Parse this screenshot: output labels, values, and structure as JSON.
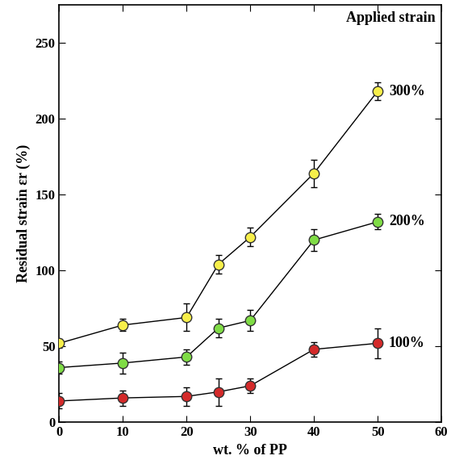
{
  "chart_data": {
    "type": "line",
    "xlabel": "wt. % of PP",
    "ylabel": "Residual strain εr (%)",
    "annotations": [
      "Applied strain"
    ],
    "x": [
      0,
      10,
      20,
      25,
      30,
      40,
      50
    ],
    "xlim": [
      0,
      60
    ],
    "xticks": [
      0,
      10,
      20,
      30,
      40,
      50,
      60
    ],
    "ylim": [
      0,
      275
    ],
    "yticks": [
      0,
      50,
      100,
      150,
      200,
      250
    ],
    "grid": false,
    "marker": "circle",
    "line_style": "solid",
    "series": [
      {
        "name": "300%",
        "color": "#f7ef4a",
        "values": [
          52,
          64,
          69,
          104,
          122,
          164,
          218
        ],
        "errors": [
          3,
          4,
          9,
          6,
          6,
          9,
          6
        ]
      },
      {
        "name": "200%",
        "color": "#7fdc45",
        "values": [
          36,
          39,
          43,
          62,
          67,
          120,
          132
        ],
        "errors": [
          4,
          7,
          5,
          6,
          7,
          7,
          5
        ]
      },
      {
        "name": "100%",
        "color": "#d42a2a",
        "values": [
          14,
          16,
          17,
          20,
          24,
          48,
          52
        ],
        "errors": [
          5,
          5,
          6,
          9,
          5,
          5,
          10
        ]
      }
    ]
  }
}
